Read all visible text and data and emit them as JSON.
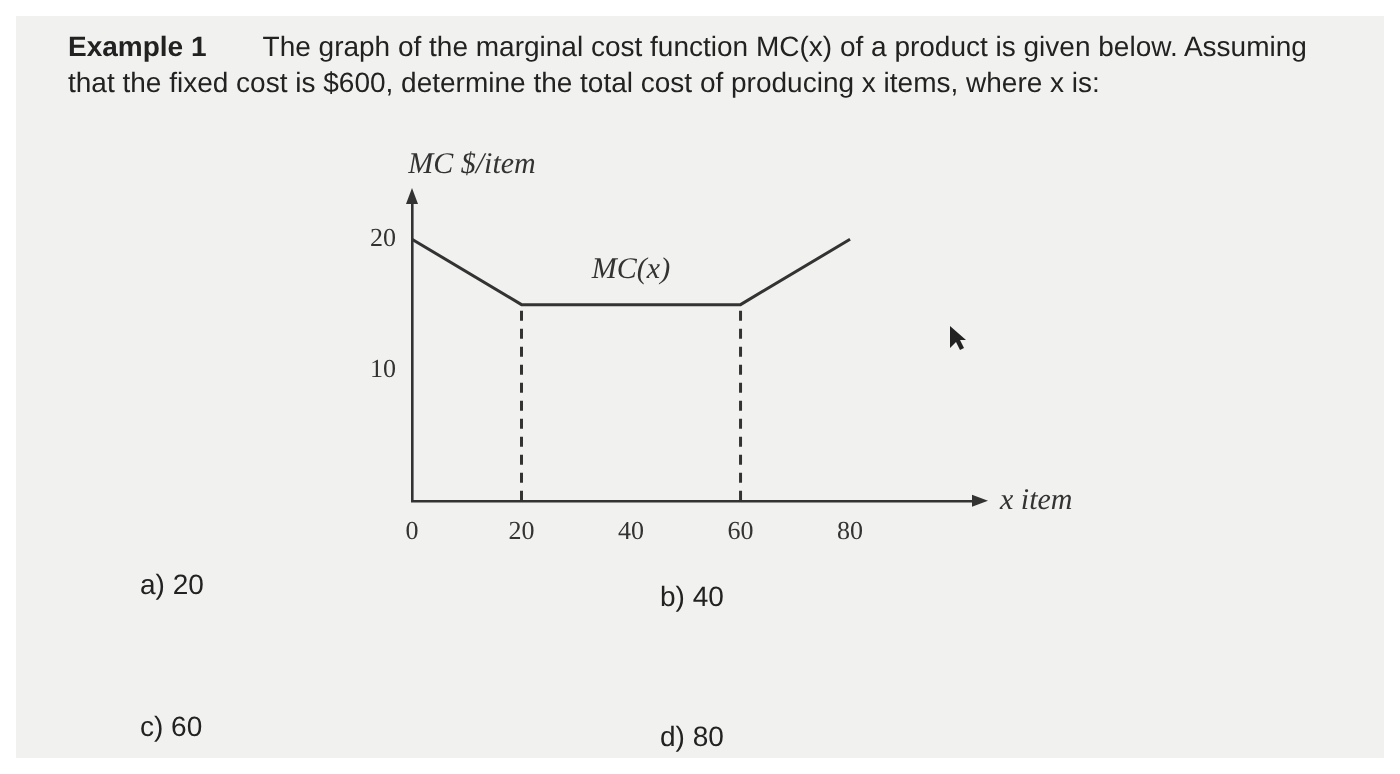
{
  "chart_data": {
    "type": "line",
    "title": "Example 1",
    "subtitle": "The graph of the marginal cost function MC(x) of a product is given below. Assuming that the fixed cost is $600, determine the total cost of producing x items, where x is:",
    "xlabel": "x item",
    "ylabel": "MC $/item",
    "series": [
      {
        "name": "MC(x)",
        "color": "#333333",
        "x": [
          0,
          20,
          60,
          80
        ],
        "values": [
          20,
          15,
          15,
          20
        ]
      },
      {
        "color": "#333333",
        "x": [
          20,
          20
        ],
        "values": [
          0,
          15
        ],
        "line_style": "dashed"
      },
      {
        "color": "#333333",
        "x": [
          60,
          60
        ],
        "values": [
          0,
          15
        ],
        "line_style": "dashed"
      }
    ],
    "xlim": [
      0,
      103
    ],
    "ylim": [
      0,
      23
    ],
    "xticks": [
      0,
      20,
      40,
      60,
      80
    ],
    "yticks": [
      10,
      20
    ],
    "grid": false,
    "legend": false,
    "marker": "none",
    "line_style": "solid",
    "annotations": [
      "a) 20",
      "b) 40",
      "c) 60",
      "d) 80"
    ]
  }
}
